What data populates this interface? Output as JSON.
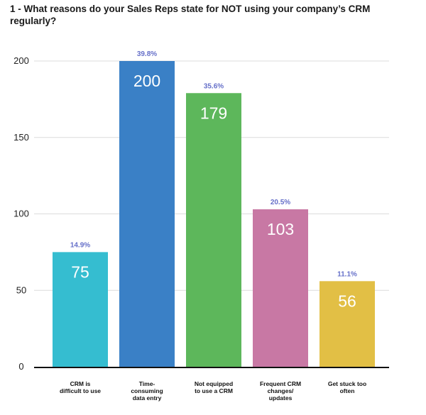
{
  "chart_data": {
    "type": "bar",
    "title": "1 - What reasons do your Sales Reps state for NOT using your company’s CRM regularly?",
    "xlabel": "",
    "ylabel": "",
    "ylim": [
      0,
      200
    ],
    "yticks": [
      0,
      50,
      100,
      150,
      200
    ],
    "grid": true,
    "categories": [
      [
        "CRM is",
        "difficult to use"
      ],
      [
        "Time-",
        "consuming",
        "data entry"
      ],
      [
        "Not equipped",
        "to use a CRM"
      ],
      [
        "Frequent CRM",
        "changes/",
        "updates"
      ],
      [
        "Get stuck too",
        "often"
      ]
    ],
    "values": [
      75,
      200,
      179,
      103,
      56
    ],
    "percent_labels": [
      "14.9%",
      "39.8%",
      "35.6%",
      "20.5%",
      "11.1%"
    ],
    "colors": [
      "#35bdd0",
      "#3a80c6",
      "#5db75b",
      "#c878a4",
      "#e2bf45"
    ]
  }
}
